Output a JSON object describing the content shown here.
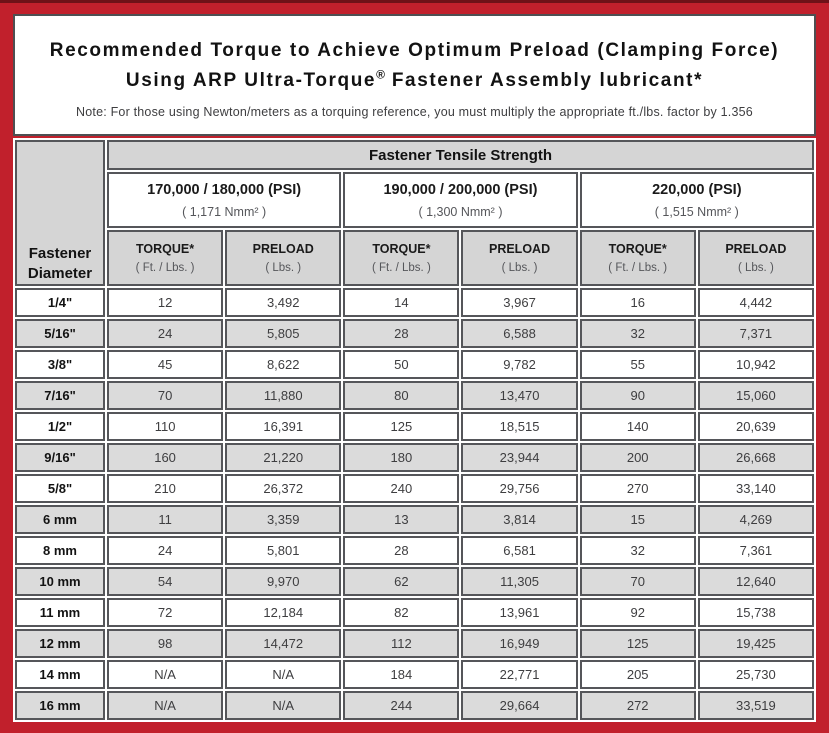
{
  "colors": {
    "frame_red": "#c1202c",
    "frame_top_line": "#6f1218",
    "header_gray": "#d5d5d5",
    "row_alt_gray": "#dbdbdb",
    "cell_border_gray": "#55565a"
  },
  "title": {
    "line1": "Recommended Torque to Achieve Optimum Preload (Clamping Force)",
    "line2_pre": "Using ARP Ultra-Torque",
    "registered_mark": "®",
    "line2_post": " Fastener Assembly lubricant*",
    "note": "Note: For those using Newton/meters as a torquing reference, you must multiply the appropriate ft./lbs. factor by 1.356"
  },
  "table": {
    "corner_header": "Fastener Diameter",
    "top_header": "Fastener Tensile Strength",
    "strength_groups": [
      {
        "psi": "170,000 / 180,000 (PSI)",
        "nmm": "( 1,171 Nmm² )"
      },
      {
        "psi": "190,000 / 200,000 (PSI)",
        "nmm": "( 1,300 Nmm² )"
      },
      {
        "psi": "220,000 (PSI)",
        "nmm": "( 1,515 Nmm² )"
      }
    ],
    "sub_headers": {
      "torque_label": "TORQUE*",
      "torque_unit": "( Ft. / Lbs. )",
      "preload_label": "PRELOAD",
      "preload_unit": "( Lbs. )"
    },
    "rows": [
      {
        "diameter": "1/4\"",
        "values": [
          "12",
          "3,492",
          "14",
          "3,967",
          "16",
          "4,442"
        ]
      },
      {
        "diameter": "5/16\"",
        "values": [
          "24",
          "5,805",
          "28",
          "6,588",
          "32",
          "7,371"
        ]
      },
      {
        "diameter": "3/8\"",
        "values": [
          "45",
          "8,622",
          "50",
          "9,782",
          "55",
          "10,942"
        ]
      },
      {
        "diameter": "7/16\"",
        "values": [
          "70",
          "11,880",
          "80",
          "13,470",
          "90",
          "15,060"
        ]
      },
      {
        "diameter": "1/2\"",
        "values": [
          "110",
          "16,391",
          "125",
          "18,515",
          "140",
          "20,639"
        ]
      },
      {
        "diameter": "9/16\"",
        "values": [
          "160",
          "21,220",
          "180",
          "23,944",
          "200",
          "26,668"
        ]
      },
      {
        "diameter": "5/8\"",
        "values": [
          "210",
          "26,372",
          "240",
          "29,756",
          "270",
          "33,140"
        ]
      },
      {
        "diameter": "6 mm",
        "values": [
          "11",
          "3,359",
          "13",
          "3,814",
          "15",
          "4,269"
        ]
      },
      {
        "diameter": "8 mm",
        "values": [
          "24",
          "5,801",
          "28",
          "6,581",
          "32",
          "7,361"
        ]
      },
      {
        "diameter": "10 mm",
        "values": [
          "54",
          "9,970",
          "62",
          "11,305",
          "70",
          "12,640"
        ]
      },
      {
        "diameter": "11 mm",
        "values": [
          "72",
          "12,184",
          "82",
          "13,961",
          "92",
          "15,738"
        ]
      },
      {
        "diameter": "12 mm",
        "values": [
          "98",
          "14,472",
          "112",
          "16,949",
          "125",
          "19,425"
        ]
      },
      {
        "diameter": "14 mm",
        "values": [
          "N/A",
          "N/A",
          "184",
          "22,771",
          "205",
          "25,730"
        ]
      },
      {
        "diameter": "16 mm",
        "values": [
          "N/A",
          "N/A",
          "244",
          "29,664",
          "272",
          "33,519"
        ]
      }
    ]
  }
}
